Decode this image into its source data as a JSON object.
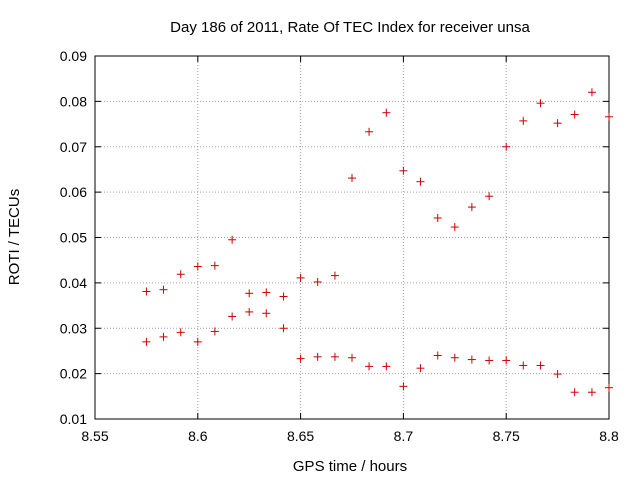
{
  "chart_data": {
    "type": "scatter",
    "title": "Day 186 of 2011, Rate Of TEC Index for receiver unsa",
    "xlabel": "GPS time / hours",
    "ylabel": "ROTI / TECUs",
    "xlim": [
      8.55,
      8.8
    ],
    "ylim": [
      0.01,
      0.09
    ],
    "grid": true,
    "marker": "+",
    "marker_color": "#cc0000",
    "x_ticks": [
      "8.55",
      "8.6",
      "8.65",
      "8.7",
      "8.75",
      "8.8"
    ],
    "x_tick_values": [
      8.55,
      8.6,
      8.65,
      8.7,
      8.75,
      8.8
    ],
    "y_ticks": [
      "0.01",
      "0.02",
      "0.03",
      "0.04",
      "0.05",
      "0.06",
      "0.07",
      "0.08",
      "0.09"
    ],
    "y_tick_values": [
      0.01,
      0.02,
      0.03,
      0.04,
      0.05,
      0.06,
      0.07,
      0.08,
      0.09
    ],
    "series": [
      {
        "points": [
          [
            8.575,
            0.0381
          ],
          [
            8.5833,
            0.0385
          ],
          [
            8.5917,
            0.0419
          ],
          [
            8.6,
            0.0436
          ],
          [
            8.6083,
            0.0438
          ],
          [
            8.6167,
            0.0495
          ],
          [
            8.625,
            0.0377
          ],
          [
            8.6333,
            0.0379
          ],
          [
            8.6417,
            0.037
          ],
          [
            8.65,
            0.0411
          ],
          [
            8.6583,
            0.0402
          ],
          [
            8.6667,
            0.0416
          ],
          [
            8.675,
            0.0631
          ],
          [
            8.6833,
            0.0733
          ],
          [
            8.6917,
            0.0775
          ],
          [
            8.7,
            0.0647
          ],
          [
            8.7083,
            0.0623
          ],
          [
            8.7167,
            0.0543
          ],
          [
            8.725,
            0.0523
          ],
          [
            8.7333,
            0.0567
          ],
          [
            8.7417,
            0.0591
          ],
          [
            8.75,
            0.07
          ],
          [
            8.7583,
            0.0757
          ],
          [
            8.7667,
            0.0796
          ],
          [
            8.775,
            0.0752
          ],
          [
            8.7833,
            0.0771
          ],
          [
            8.7917,
            0.082
          ],
          [
            8.8,
            0.0766
          ]
        ]
      },
      {
        "points": [
          [
            8.575,
            0.027
          ],
          [
            8.5833,
            0.0281
          ],
          [
            8.5917,
            0.0291
          ],
          [
            8.6,
            0.027
          ],
          [
            8.6083,
            0.0293
          ],
          [
            8.6167,
            0.0326
          ],
          [
            8.625,
            0.0336
          ],
          [
            8.6333,
            0.0333
          ],
          [
            8.6417,
            0.03
          ],
          [
            8.65,
            0.0233
          ],
          [
            8.6583,
            0.0237
          ],
          [
            8.6667,
            0.0237
          ],
          [
            8.675,
            0.0235
          ],
          [
            8.6833,
            0.0216
          ],
          [
            8.6917,
            0.0216
          ],
          [
            8.7,
            0.0172
          ],
          [
            8.7083,
            0.0212
          ],
          [
            8.7167,
            0.024
          ],
          [
            8.725,
            0.0235
          ],
          [
            8.7333,
            0.0231
          ],
          [
            8.7417,
            0.0229
          ],
          [
            8.75,
            0.0229
          ],
          [
            8.7583,
            0.0218
          ],
          [
            8.7667,
            0.0218
          ],
          [
            8.775,
            0.0199
          ],
          [
            8.7833,
            0.0159
          ],
          [
            8.7917,
            0.0159
          ],
          [
            8.8,
            0.0169
          ]
        ]
      }
    ]
  }
}
